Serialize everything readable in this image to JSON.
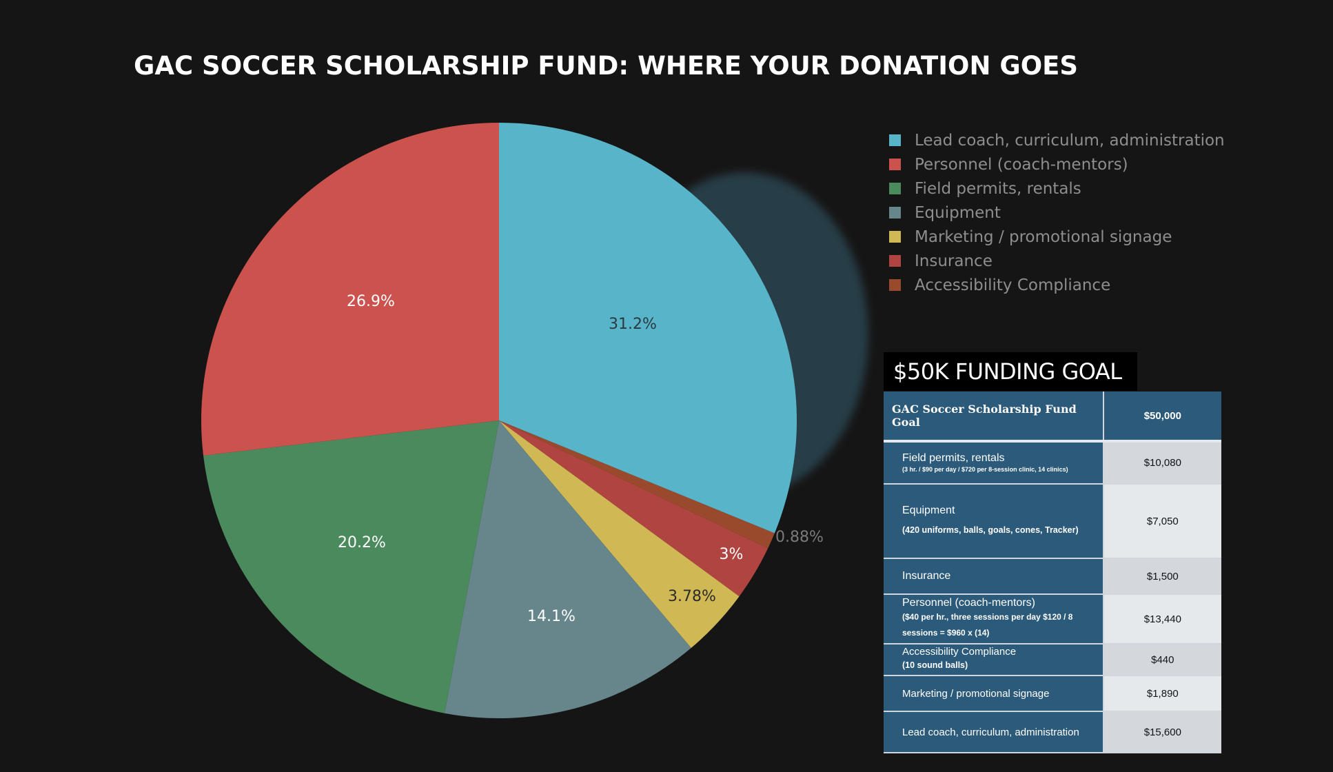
{
  "title": "GAC SOCCER SCHOLARSHIP FUND:  WHERE YOUR DONATION GOES",
  "chart_data": {
    "type": "pie",
    "slices": [
      {
        "label": "Lead coach, curriculum, administration",
        "value": 31.2,
        "display": "31.2%",
        "color": "#58b4c8"
      },
      {
        "label": "Personnel (coach-mentors)",
        "value": 26.9,
        "display": "26.9%",
        "color": "#cc524e"
      },
      {
        "label": "Field permits, rentals",
        "value": 20.2,
        "display": "20.2%",
        "color": "#4a8a5c"
      },
      {
        "label": "Equipment",
        "value": 14.1,
        "display": "14.1%",
        "color": "#66868c"
      },
      {
        "label": "Marketing / promotional signage",
        "value": 3.78,
        "display": "3.78%",
        "color": "#d0b955"
      },
      {
        "label": "Insurance",
        "value": 3.0,
        "display": "3%",
        "color": "#b04440"
      },
      {
        "label": "Accessibility Compliance",
        "value": 0.88,
        "display": "0.88%",
        "color": "#9a4a2c"
      }
    ],
    "legend_position": "top-right"
  },
  "funding": {
    "heading": "$50K FUNDING GOAL",
    "goal_label": "GAC Soccer Scholarship Fund Goal",
    "goal_value": "$50,000",
    "rows": [
      {
        "label": "Field permits, rentals",
        "note": "(3 hr. / $90 per day / $720 per 8-session clinic, 14 clinics)",
        "value": "$10,080"
      },
      {
        "label": "Equipment",
        "note": "(420 uniforms, balls, goals, cones, Tracker)",
        "value": "$7,050"
      },
      {
        "label": "Insurance",
        "note": "",
        "value": "$1,500"
      },
      {
        "label": "Personnel (coach-mentors)",
        "note": "($40 per hr., three sessions per day $120 / 8 sessions = $960 x (14)",
        "value": "$13,440"
      },
      {
        "label": "Accessibility Compliance",
        "note": "(10 sound balls)",
        "value": "$440"
      },
      {
        "label": "Marketing / promotional signage",
        "note": "",
        "value": "$1,890"
      },
      {
        "label": "Lead coach, curriculum, administration",
        "note": "",
        "value": "$15,600"
      }
    ]
  }
}
